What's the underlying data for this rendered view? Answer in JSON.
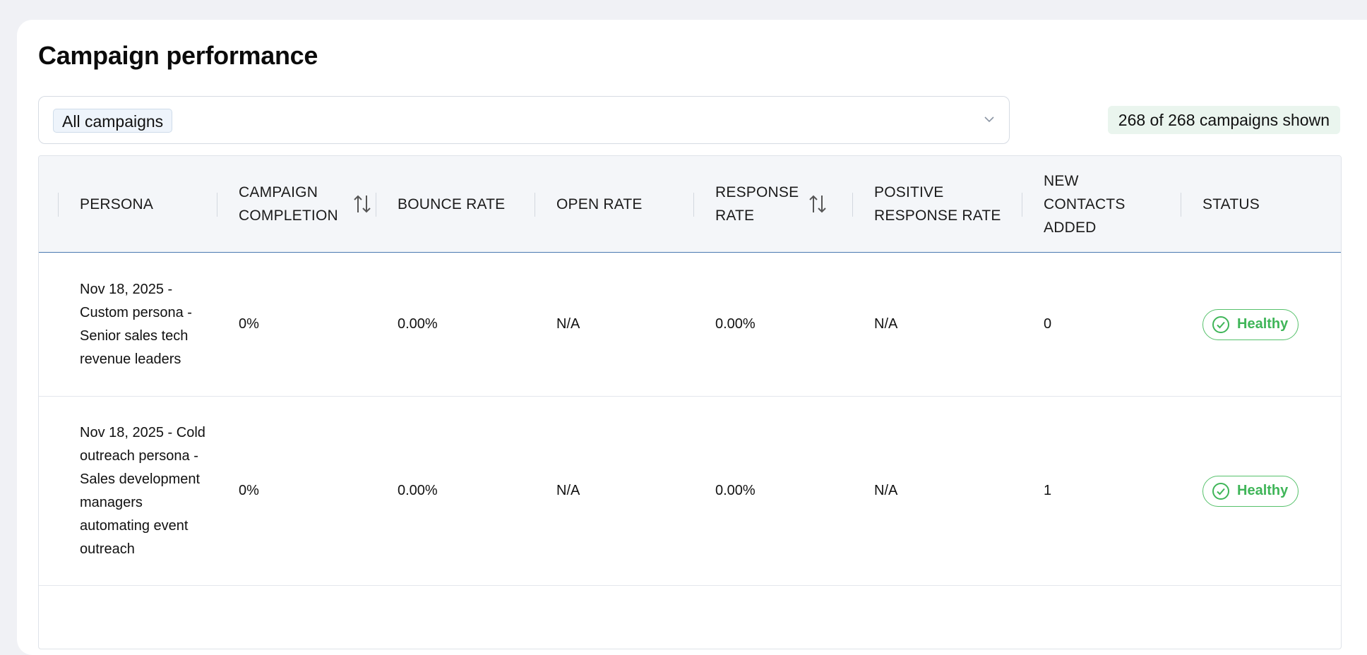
{
  "page": {
    "title": "Campaign performance"
  },
  "filter": {
    "selected": "All campaigns",
    "icon": "chevron-down-icon"
  },
  "summary": {
    "count_text": "268 of 268 campaigns shown"
  },
  "colors": {
    "healthy": "#3fb558",
    "header_bg": "#f4f6f9",
    "accent_border": "#4a78b0"
  },
  "table": {
    "columns": [
      {
        "key": "persona",
        "label": "Persona",
        "sortable": false
      },
      {
        "key": "completion",
        "label": "Campaign Completion",
        "sortable": true
      },
      {
        "key": "bounce",
        "label": "Bounce Rate",
        "sortable": false
      },
      {
        "key": "open",
        "label": "Open Rate",
        "sortable": false
      },
      {
        "key": "response",
        "label": "Response Rate",
        "sortable": true
      },
      {
        "key": "positive",
        "label": "Positive Response Rate",
        "sortable": false
      },
      {
        "key": "contacts",
        "label": "New Contacts Added",
        "sortable": false
      },
      {
        "key": "status",
        "label": "Status",
        "sortable": false
      }
    ],
    "rows": [
      {
        "persona": "Nov 18, 2025 - Custom persona - Senior sales tech revenue leaders",
        "completion": "0%",
        "bounce": "0.00%",
        "open": "N/A",
        "response": "0.00%",
        "positive": "N/A",
        "contacts": "0",
        "status": "Healthy"
      },
      {
        "persona": "Nov 18, 2025 - Cold outreach persona - Sales development managers automating event outreach",
        "completion": "0%",
        "bounce": "0.00%",
        "open": "N/A",
        "response": "0.00%",
        "positive": "N/A",
        "contacts": "1",
        "status": "Healthy"
      }
    ]
  }
}
